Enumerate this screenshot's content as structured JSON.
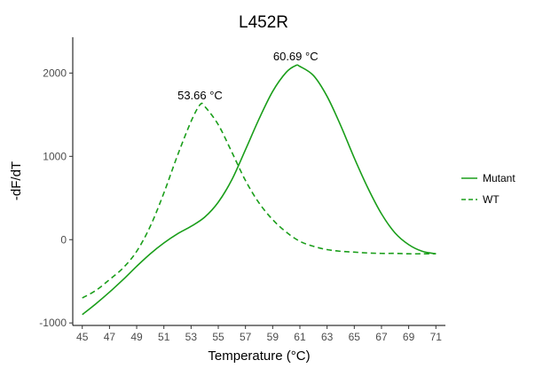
{
  "chart_data": {
    "type": "line",
    "title": "L452R",
    "xlabel": "Temperature (°C)",
    "ylabel": "-dF/dT",
    "xlim": [
      44.3,
      71.7
    ],
    "ylim": [
      -1030,
      2430
    ],
    "x_ticks": [
      45,
      47,
      49,
      51,
      53,
      55,
      57,
      59,
      61,
      63,
      65,
      67,
      69,
      71
    ],
    "y_ticks": [
      -1000,
      0,
      1000,
      2000
    ],
    "grid": false,
    "legend_position": "right",
    "series": [
      {
        "name": "Mutant",
        "color": "#1a9e1a",
        "dash": "solid",
        "x": [
          45,
          46,
          47,
          48,
          49,
          50,
          51,
          52,
          53,
          54,
          55,
          56,
          57,
          58,
          59,
          60,
          60.69,
          61,
          62,
          63,
          64,
          65,
          66,
          67,
          68,
          69,
          70,
          71
        ],
        "y": [
          -900,
          -770,
          -630,
          -480,
          -320,
          -170,
          -40,
          70,
          160,
          270,
          450,
          720,
          1080,
          1450,
          1780,
          2010,
          2090,
          2080,
          1970,
          1720,
          1370,
          980,
          620,
          310,
          80,
          -60,
          -140,
          -170
        ]
      },
      {
        "name": "WT",
        "color": "#1a9e1a",
        "dash": "dashed",
        "x": [
          45,
          46,
          47,
          48,
          49,
          50,
          51,
          52,
          53,
          53.66,
          54,
          55,
          56,
          57,
          58,
          59,
          60,
          61,
          62,
          63,
          64,
          65,
          66,
          67,
          68,
          69,
          70,
          71
        ],
        "y": [
          -700,
          -610,
          -480,
          -340,
          -140,
          160,
          560,
          1010,
          1420,
          1620,
          1600,
          1380,
          1050,
          710,
          440,
          240,
          90,
          -20,
          -80,
          -120,
          -140,
          -150,
          -160,
          -165,
          -165,
          -170,
          -170,
          -170
        ]
      }
    ],
    "annotations": [
      {
        "text": "60.69 °C",
        "x": 60.69,
        "y": 2090
      },
      {
        "text": "53.66 °C",
        "x": 53.66,
        "y": 1620
      }
    ]
  }
}
